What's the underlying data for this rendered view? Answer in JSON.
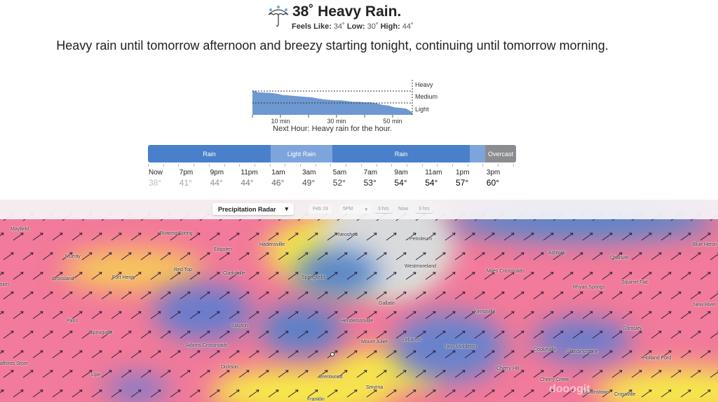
{
  "current": {
    "icon": "umbrella-rain-icon",
    "title": "38˚ Heavy Rain.",
    "feels_label": "Feels Like:",
    "feels": "34˚",
    "low_label": "Low:",
    "low": "30˚",
    "high_label": "High:",
    "high": "44˚"
  },
  "summary": "Heavy rain until tomorrow afternoon and breezy starting tonight, continuing until tomorrow morning.",
  "next_hour": {
    "levels": [
      "Heavy",
      "Medium",
      "Light"
    ],
    "ticks": [
      "10 min",
      "30 min",
      "50 min"
    ],
    "text": "Next Hour: Heavy rain for the hour.",
    "intensity_fraction": [
      0.98,
      0.9,
      0.89,
      0.88,
      0.85,
      0.8,
      0.78,
      0.76,
      0.74,
      0.72,
      0.7,
      0.66,
      0.62,
      0.6,
      0.58,
      0.58,
      0.55,
      0.52,
      0.52,
      0.5,
      0.5,
      0.46,
      0.4,
      0.37,
      0.3,
      0.28,
      0.25,
      0.1
    ]
  },
  "timeline": {
    "segments": [
      {
        "label": "Rain",
        "color": "#4a7fcb"
      },
      {
        "label": "Light Rain",
        "color": "#7ea4dc"
      },
      {
        "label": "Rain",
        "color": "#4a7fcb"
      },
      {
        "label": "",
        "color": "#7ea4dc"
      },
      {
        "label": "Overcast",
        "color": "#8a8c8f"
      }
    ],
    "hours": [
      {
        "t": "Now",
        "v": "38°"
      },
      {
        "t": "7pm",
        "v": "41°"
      },
      {
        "t": "9pm",
        "v": "44°"
      },
      {
        "t": "11pm",
        "v": "44°"
      },
      {
        "t": "1am",
        "v": "46°"
      },
      {
        "t": "3am",
        "v": "49°"
      },
      {
        "t": "5am",
        "v": "52°"
      },
      {
        "t": "7am",
        "v": "53°"
      },
      {
        "t": "9am",
        "v": "54°"
      },
      {
        "t": "11am",
        "v": "54°"
      },
      {
        "t": "1pm",
        "v": "57°"
      },
      {
        "t": "3pm",
        "v": "60°"
      }
    ]
  },
  "map": {
    "layer": "Precipitation Radar",
    "date": "Feb 19",
    "time": "5PM",
    "back": "3 hrs",
    "now": "Now",
    "fwd": "3 hrs",
    "cities": [
      "Mayfield",
      "Roaring Spring",
      "Murray",
      "Edgoten",
      "Hadensville",
      "Neosheo",
      "Petroleum",
      "Westmoreland",
      "Red Top",
      "Clarksville",
      "Crossland",
      "Fort Henry",
      "Springfield",
      "sion",
      "Gallatin",
      "Paris",
      "Springville",
      "Stayton",
      "Hendersonville",
      "Adams Crossroads",
      "Mount Juliet",
      "Lebanon",
      "New Middleton",
      "Kempville",
      "Miles Crossroads",
      "Ashlock",
      "Chanute",
      "Rhyan Springs",
      "Squirrel Flat",
      "Blue Heron",
      "New River",
      "Grimsley",
      "Cookeville",
      "Standingstone",
      "Holland Ford",
      "Cherry Hill",
      "Cherry Creek",
      "Brownstown",
      "Crossville",
      "Smyrna",
      "Brentwood",
      "Franklin",
      "Dickson",
      "Lipe",
      "affords Store"
    ],
    "watermark": "dooogit"
  }
}
